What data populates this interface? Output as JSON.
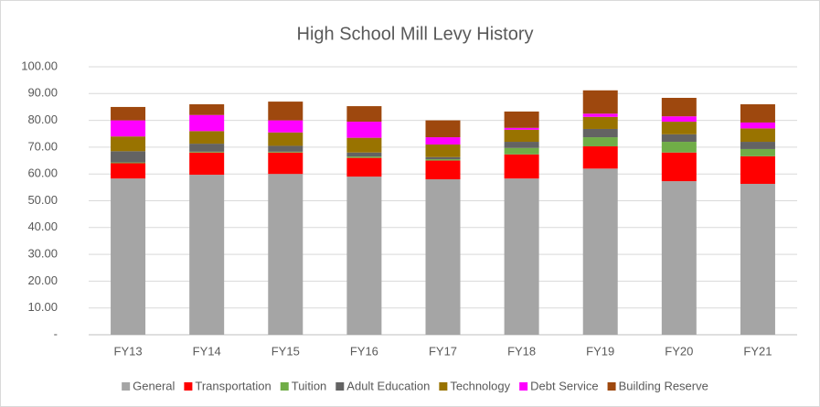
{
  "chart_data": {
    "type": "stacked_bar",
    "title": "High School Mill Levy History",
    "categories": [
      "FY13",
      "FY14",
      "FY15",
      "FY16",
      "FY17",
      "FY18",
      "FY19",
      "FY20",
      "FY21"
    ],
    "series": [
      {
        "name": "General",
        "color": "#a5a5a5",
        "values": [
          58.3,
          59.7,
          60,
          59,
          58,
          58.3,
          62,
          57.3,
          56.3
        ]
      },
      {
        "name": "Transportation",
        "color": "#ff0000",
        "values": [
          5.7,
          8.3,
          8,
          7,
          7,
          9,
          8.3,
          10.7,
          10.3
        ]
      },
      {
        "name": "Tuition",
        "color": "#70ad47",
        "values": [
          0.3,
          0.3,
          0.3,
          0.5,
          0.5,
          2.4,
          3.4,
          4,
          2.7
        ]
      },
      {
        "name": "Adult Education",
        "color": "#636363",
        "values": [
          4.2,
          3,
          2.2,
          1.5,
          0.8,
          2.3,
          3.1,
          2.8,
          2.7
        ]
      },
      {
        "name": "Technology",
        "color": "#997300",
        "values": [
          5.5,
          4.7,
          5,
          5.5,
          4.7,
          4.5,
          4.5,
          4.7,
          5
        ]
      },
      {
        "name": "Debt Service",
        "color": "#ff00ff",
        "values": [
          6,
          6,
          4.5,
          6,
          2.7,
          0.7,
          1.2,
          2,
          2.2
        ]
      },
      {
        "name": "Building Reserve",
        "color": "#9e480e",
        "values": [
          5,
          4,
          7,
          5.8,
          6.3,
          6.1,
          8.7,
          6.9,
          6.8
        ]
      }
    ],
    "ylim": [
      0,
      100
    ],
    "yticks": [
      {
        "value": 0,
        "label": "-"
      },
      {
        "value": 10,
        "label": "10.00"
      },
      {
        "value": 20,
        "label": "20.00"
      },
      {
        "value": 30,
        "label": "30.00"
      },
      {
        "value": 40,
        "label": "40.00"
      },
      {
        "value": 50,
        "label": "50.00"
      },
      {
        "value": 60,
        "label": "60.00"
      },
      {
        "value": 70,
        "label": "70.00"
      },
      {
        "value": 80,
        "label": "80.00"
      },
      {
        "value": 90,
        "label": "90.00"
      },
      {
        "value": 100,
        "label": "100.00"
      }
    ],
    "grid": true,
    "legend": "bottom"
  }
}
